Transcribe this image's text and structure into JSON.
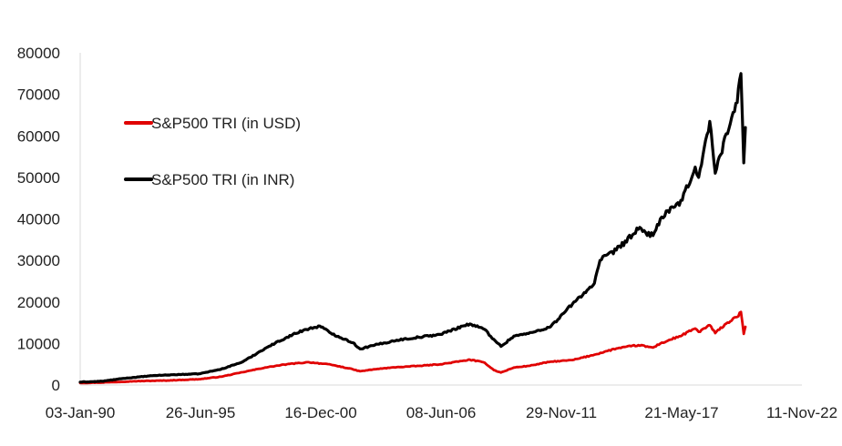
{
  "chart_data": {
    "type": "line",
    "title": "",
    "xlabel": "",
    "ylabel": "",
    "x_axis_type": "date",
    "xlim": [
      "1990-01-03",
      "2022-11-11"
    ],
    "ylim": [
      0,
      80000
    ],
    "yticks": [
      0,
      10000,
      20000,
      30000,
      40000,
      50000,
      60000,
      70000,
      80000
    ],
    "ytick_labels": [
      "0",
      "10000",
      "20000",
      "30000",
      "40000",
      "50000",
      "60000",
      "70000",
      "80000"
    ],
    "xticks": [
      "1990-01-03",
      "1995-06-26",
      "2000-12-16",
      "2006-06-08",
      "2011-11-29",
      "2017-05-21",
      "2022-11-11"
    ],
    "xtick_labels": [
      "03-Jan-90",
      "26-Jun-95",
      "16-Dec-00",
      "08-Jun-06",
      "29-Nov-11",
      "21-May-17",
      "11-Nov-22"
    ],
    "grid": false,
    "legend_position": "top-left",
    "series": [
      {
        "name": "S&P500 TRI (in USD)",
        "color": "#e00000",
        "points": [
          [
            "1990-01-03",
            500
          ],
          [
            "1991-01-01",
            600
          ],
          [
            "1992-06-01",
            900
          ],
          [
            "1994-01-01",
            1100
          ],
          [
            "1995-06-01",
            1400
          ],
          [
            "1996-06-01",
            2000
          ],
          [
            "1997-06-01",
            3100
          ],
          [
            "1998-06-01",
            4200
          ],
          [
            "1999-06-01",
            5000
          ],
          [
            "2000-06-01",
            5500
          ],
          [
            "2001-06-01",
            4900
          ],
          [
            "2002-06-01",
            3800
          ],
          [
            "2002-10-01",
            3300
          ],
          [
            "2003-06-01",
            3800
          ],
          [
            "2004-06-01",
            4300
          ],
          [
            "2005-06-01",
            4600
          ],
          [
            "2006-06-01",
            5000
          ],
          [
            "2007-06-01",
            5800
          ],
          [
            "2007-10-01",
            6100
          ],
          [
            "2008-06-01",
            5400
          ],
          [
            "2008-11-01",
            3600
          ],
          [
            "2009-03-01",
            3000
          ],
          [
            "2009-10-01",
            4200
          ],
          [
            "2010-06-01",
            4600
          ],
          [
            "2011-06-01",
            5600
          ],
          [
            "2012-06-01",
            6000
          ],
          [
            "2013-06-01",
            7300
          ],
          [
            "2014-06-01",
            8800
          ],
          [
            "2015-06-01",
            9600
          ],
          [
            "2016-02-01",
            9000
          ],
          [
            "2016-06-01",
            10000
          ],
          [
            "2017-06-01",
            12000
          ],
          [
            "2018-01-01",
            13600
          ],
          [
            "2018-03-01",
            12800
          ],
          [
            "2018-09-01",
            14400
          ],
          [
            "2018-12-01",
            12500
          ],
          [
            "2019-06-01",
            14800
          ],
          [
            "2019-12-01",
            16400
          ],
          [
            "2020-02-01",
            17600
          ],
          [
            "2020-03-20",
            12300
          ],
          [
            "2020-04-15",
            14000
          ]
        ]
      },
      {
        "name": "S&P500 TRI (in INR)",
        "color": "#000000",
        "points": [
          [
            "1990-01-03",
            700
          ],
          [
            "1991-01-01",
            900
          ],
          [
            "1992-01-01",
            1600
          ],
          [
            "1993-06-01",
            2300
          ],
          [
            "1995-06-01",
            2700
          ],
          [
            "1996-06-01",
            3800
          ],
          [
            "1997-06-01",
            5600
          ],
          [
            "1998-06-01",
            8800
          ],
          [
            "1999-06-01",
            11500
          ],
          [
            "2000-03-01",
            13200
          ],
          [
            "2000-12-01",
            14200
          ],
          [
            "2001-06-01",
            12500
          ],
          [
            "2002-06-01",
            10200
          ],
          [
            "2002-10-01",
            8700
          ],
          [
            "2003-06-01",
            9600
          ],
          [
            "2004-06-01",
            10800
          ],
          [
            "2005-06-01",
            11500
          ],
          [
            "2006-06-01",
            12200
          ],
          [
            "2007-06-01",
            14200
          ],
          [
            "2007-10-01",
            14700
          ],
          [
            "2008-06-01",
            13400
          ],
          [
            "2008-11-01",
            11000
          ],
          [
            "2009-03-01",
            9300
          ],
          [
            "2009-10-01",
            11800
          ],
          [
            "2010-06-01",
            12400
          ],
          [
            "2011-06-01",
            14000
          ],
          [
            "2012-06-01",
            19500
          ],
          [
            "2013-06-01",
            24500
          ],
          [
            "2013-09-01",
            30000
          ],
          [
            "2014-06-01",
            32500
          ],
          [
            "2015-06-01",
            37500
          ],
          [
            "2016-02-01",
            36000
          ],
          [
            "2016-06-01",
            40000
          ],
          [
            "2017-06-01",
            44500
          ],
          [
            "2018-01-01",
            52500
          ],
          [
            "2018-03-01",
            50000
          ],
          [
            "2018-09-01",
            63500
          ],
          [
            "2018-12-01",
            51000
          ],
          [
            "2019-06-01",
            60500
          ],
          [
            "2019-12-01",
            68000
          ],
          [
            "2020-02-01",
            75000
          ],
          [
            "2020-03-20",
            53500
          ],
          [
            "2020-04-15",
            62000
          ]
        ]
      }
    ]
  }
}
